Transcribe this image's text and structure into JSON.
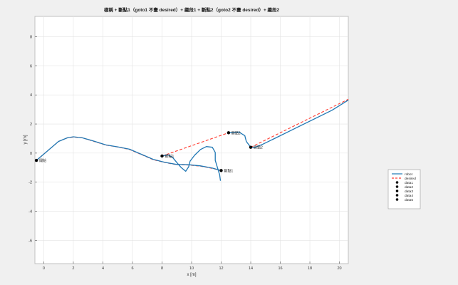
{
  "chart_data": {
    "type": "line",
    "title": "樣稱 + 斷點1（goto1 不畫 desired）+ 繼段1 + 斷點2（goto2 不畫 desired）+ 繼段2",
    "xlabel": "x [m]",
    "ylabel": "y [m]",
    "xlim": [
      -0.6,
      20.6
    ],
    "ylim": [
      -7.6,
      9.4
    ],
    "xticks": [
      0,
      2,
      4,
      6,
      8,
      10,
      12,
      14,
      16,
      18,
      20
    ],
    "yticks": [
      -6,
      -4,
      -2,
      0,
      2,
      4,
      6,
      8
    ],
    "grid": true,
    "legend_position": "outside-right",
    "series": [
      {
        "name": "desired",
        "color": "#ff3b30",
        "style": "dashed",
        "segments": [
          [
            [
              -0.5,
              -0.5
            ],
            [
              0.2,
              0.1
            ],
            [
              1.0,
              0.8
            ],
            [
              1.6,
              1.05
            ],
            [
              2.0,
              1.1
            ],
            [
              2.6,
              1.05
            ],
            [
              3.4,
              0.8
            ],
            [
              4.2,
              0.55
            ],
            [
              5.0,
              0.42
            ],
            [
              5.8,
              0.25
            ],
            [
              6.6,
              -0.1
            ],
            [
              7.4,
              -0.45
            ],
            [
              8.2,
              -0.65
            ],
            [
              9.0,
              -0.8
            ],
            [
              9.8,
              -0.82
            ],
            [
              10.6,
              -0.9
            ],
            [
              11.4,
              -1.05
            ],
            [
              12.0,
              -1.2
            ]
          ],
          [
            [
              8.0,
              -0.2
            ],
            [
              12.5,
              1.4
            ]
          ],
          [
            [
              14.0,
              0.4
            ],
            [
              20.6,
              3.7
            ]
          ]
        ]
      },
      {
        "name": "robot",
        "color": "#1f77b4",
        "style": "solid",
        "segments": [
          [
            [
              -0.5,
              -0.5
            ],
            [
              0.2,
              0.1
            ],
            [
              1.0,
              0.8
            ],
            [
              1.6,
              1.05
            ],
            [
              2.0,
              1.12
            ],
            [
              2.6,
              1.05
            ],
            [
              3.4,
              0.82
            ],
            [
              4.2,
              0.56
            ],
            [
              5.0,
              0.43
            ],
            [
              5.8,
              0.27
            ],
            [
              6.6,
              -0.08
            ],
            [
              7.4,
              -0.43
            ],
            [
              8.2,
              -0.64
            ],
            [
              9.0,
              -0.78
            ],
            [
              9.8,
              -0.8
            ],
            [
              10.6,
              -0.88
            ],
            [
              11.4,
              -1.03
            ],
            [
              12.0,
              -1.2
            ]
          ],
          [
            [
              8.0,
              -0.2
            ],
            [
              8.4,
              -0.12
            ],
            [
              8.7,
              -0.28
            ],
            [
              9.0,
              -0.65
            ],
            [
              9.3,
              -1.0
            ],
            [
              9.6,
              -1.25
            ],
            [
              9.8,
              -0.95
            ],
            [
              9.9,
              -0.55
            ],
            [
              10.2,
              -0.15
            ],
            [
              10.6,
              0.25
            ],
            [
              11.0,
              0.45
            ],
            [
              11.4,
              0.4
            ],
            [
              11.6,
              0.05
            ],
            [
              11.6,
              -0.5
            ],
            [
              11.75,
              -1.0
            ],
            [
              11.9,
              -1.5
            ],
            [
              11.95,
              -1.9
            ]
          ],
          [
            [
              12.5,
              1.4
            ],
            [
              13.2,
              1.45
            ],
            [
              13.6,
              1.2
            ],
            [
              13.7,
              0.8
            ],
            [
              14.0,
              0.4
            ],
            [
              14.3,
              0.4
            ],
            [
              14.8,
              0.6
            ],
            [
              15.5,
              0.95
            ],
            [
              16.5,
              1.45
            ],
            [
              17.5,
              1.95
            ],
            [
              18.5,
              2.45
            ],
            [
              19.5,
              2.95
            ],
            [
              20.6,
              3.65
            ]
          ]
        ]
      }
    ],
    "points": [
      {
        "name": "data1",
        "x": -0.5,
        "y": -0.5,
        "label": "開始"
      },
      {
        "name": "data2",
        "x": 8.0,
        "y": -0.2,
        "label": "斷點1"
      },
      {
        "name": "data3",
        "x": 12.0,
        "y": -1.2,
        "label": "斷點1"
      },
      {
        "name": "data4",
        "x": 12.5,
        "y": 1.4,
        "label": "斷點2"
      },
      {
        "name": "data5",
        "x": 14.0,
        "y": 0.4,
        "label": "斷點2"
      }
    ]
  }
}
